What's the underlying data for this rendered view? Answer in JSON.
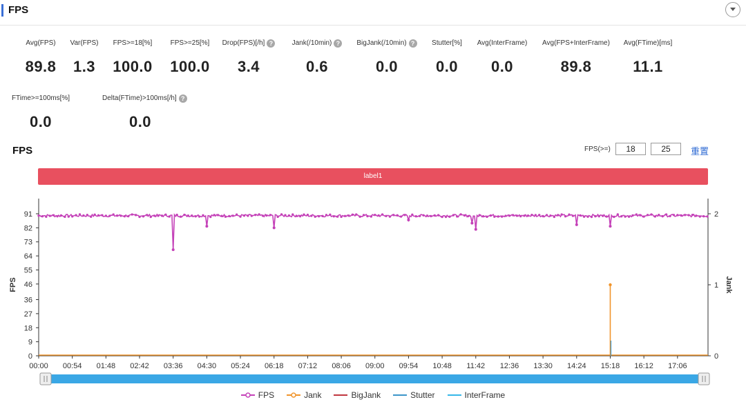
{
  "panel": {
    "title": "FPS"
  },
  "metrics": [
    {
      "label": "Avg(FPS)",
      "value": "89.8",
      "help": false
    },
    {
      "label": "Var(FPS)",
      "value": "1.3",
      "help": false
    },
    {
      "label": "FPS>=18[%]",
      "value": "100.0",
      "help": false
    },
    {
      "label": "FPS>=25[%]",
      "value": "100.0",
      "help": false
    },
    {
      "label": "Drop(FPS)[/h]",
      "value": "3.4",
      "help": true
    },
    {
      "label": "Jank(/10min)",
      "value": "0.6",
      "help": true
    },
    {
      "label": "BigJank(/10min)",
      "value": "0.0",
      "help": true
    },
    {
      "label": "Stutter[%]",
      "value": "0.0",
      "help": false
    },
    {
      "label": "Avg(InterFrame)",
      "value": "0.0",
      "help": false
    },
    {
      "label": "Avg(FPS+InterFrame)",
      "value": "89.8",
      "help": false
    },
    {
      "label": "Avg(FTime)[ms]",
      "value": "11.1",
      "help": false
    },
    {
      "label": "FTime>=100ms[%]",
      "value": "0.0",
      "help": false
    },
    {
      "label": "Delta(FTime)>100ms[/h]",
      "value": "0.0",
      "help": true
    }
  ],
  "help_glyph": "?",
  "chart_section": {
    "title": "FPS",
    "threshold_label": "FPS(>=)",
    "threshold_low": "18",
    "threshold_high": "25",
    "reset_label": "重置",
    "band_label": "label1"
  },
  "chart_data": {
    "type": "line",
    "xlabel": "",
    "ylabel": "FPS",
    "y2label": "Jank",
    "ylim": [
      0,
      91
    ],
    "y2lim": [
      0,
      2
    ],
    "yticks": [
      0,
      9,
      18,
      27,
      36,
      46,
      55,
      64,
      73,
      82,
      91
    ],
    "y2ticks": [
      0,
      1,
      2
    ],
    "x_unit": "mm:ss",
    "xlim": [
      "00:00",
      "17:55"
    ],
    "xticks": [
      "00:00",
      "00:54",
      "01:48",
      "02:42",
      "03:36",
      "04:30",
      "05:24",
      "06:18",
      "07:12",
      "08:06",
      "09:00",
      "09:54",
      "10:48",
      "11:42",
      "12:36",
      "13:30",
      "14:24",
      "15:18",
      "16:12",
      "17:06"
    ],
    "fps_baseline": 89.8,
    "fps_dips": [
      {
        "t": "03:36",
        "fps": 68
      },
      {
        "t": "04:30",
        "fps": 83
      },
      {
        "t": "06:18",
        "fps": 82
      },
      {
        "t": "09:54",
        "fps": 87
      },
      {
        "t": "11:36",
        "fps": 85
      },
      {
        "t": "11:42",
        "fps": 81
      },
      {
        "t": "14:24",
        "fps": 84
      },
      {
        "t": "15:18",
        "fps": 83
      }
    ],
    "jank_events": [
      {
        "t": "15:18",
        "jank": 1
      }
    ],
    "legend_position": "bottom",
    "series": [
      {
        "name": "FPS",
        "color": "#c441b8",
        "axis": "left"
      },
      {
        "name": "Jank",
        "color": "#f0942b",
        "axis": "right"
      },
      {
        "name": "BigJank",
        "color": "#c0353e",
        "axis": "right"
      },
      {
        "name": "Stutter",
        "color": "#3b95c9",
        "axis": "right"
      },
      {
        "name": "InterFrame",
        "color": "#35b7e8",
        "axis": "right"
      }
    ],
    "grid": false
  }
}
